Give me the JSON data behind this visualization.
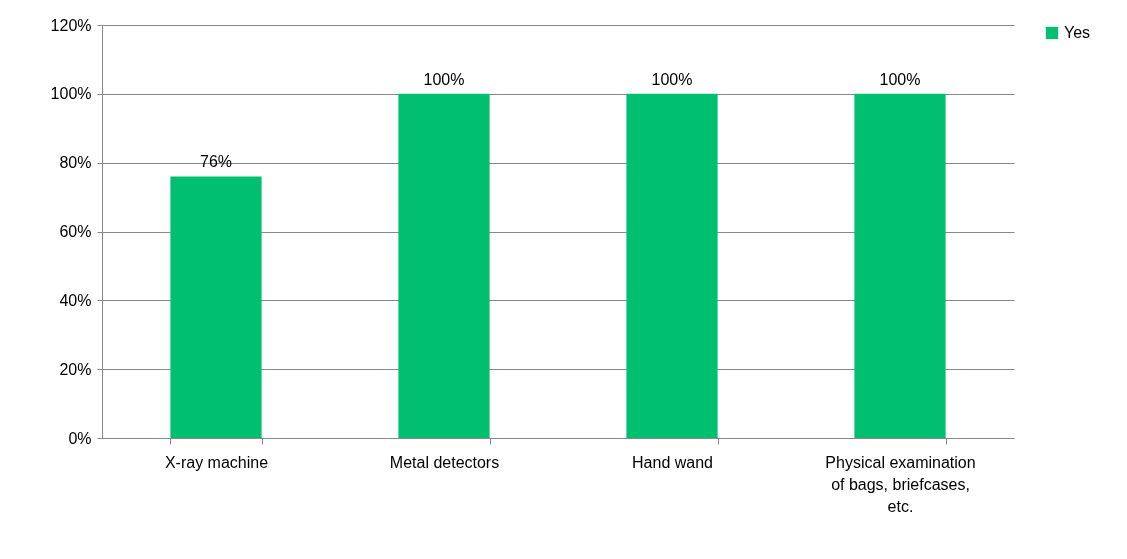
{
  "chart_data": {
    "type": "bar",
    "categories": [
      "X-ray machine",
      "Metal detectors",
      "Hand wand",
      "Physical examination of bags, briefcases, etc."
    ],
    "series": [
      {
        "name": "Yes",
        "color": "#00bf6f",
        "values": [
          76,
          100,
          100,
          100
        ],
        "value_labels": [
          "76%",
          "100%",
          "100%",
          "100%"
        ]
      }
    ],
    "ylim": [
      0,
      120
    ],
    "yticks": [
      {
        "value": 0,
        "label": "0%"
      },
      {
        "value": 20,
        "label": "20%"
      },
      {
        "value": 40,
        "label": "40%"
      },
      {
        "value": 60,
        "label": "60%"
      },
      {
        "value": 80,
        "label": "80%"
      },
      {
        "value": 100,
        "label": "100%"
      },
      {
        "value": 120,
        "label": "120%"
      }
    ],
    "grid": "y",
    "legend": "right"
  }
}
